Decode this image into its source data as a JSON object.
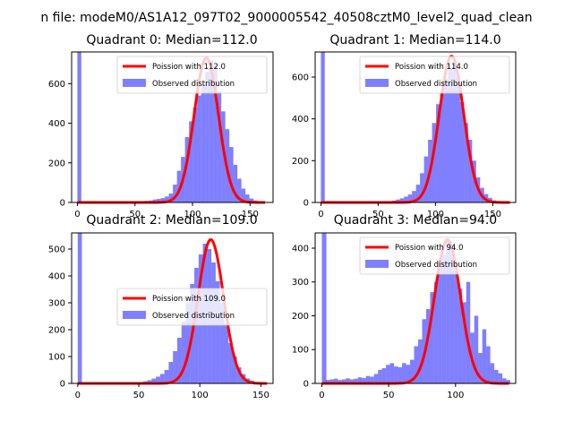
{
  "figure": {
    "suptitle": "n file: modeM0/AS1A12_097T02_9000005542_40508cztM0_level2_quad_clean"
  },
  "chart_data": [
    {
      "type": "bar",
      "title": "Quadrant 0: Median=112.0",
      "xlim": [
        -5,
        170
      ],
      "ylim": [
        0,
        760
      ],
      "xticks": [
        0,
        50,
        100,
        150
      ],
      "yticks": [
        0,
        200,
        400,
        600
      ],
      "legend": {
        "placement": "top-right",
        "line_label": "Poission with 112.0",
        "hist_label": "Observed distribution"
      },
      "poisson_mean": 112.0,
      "poisson_peak": 730,
      "poisson_range": [
        0,
        163
      ],
      "zero_bin": {
        "x": 0,
        "value": 760
      },
      "hist": {
        "bin_start": 55,
        "bin_width": 3.5,
        "values": [
          5,
          8,
          10,
          15,
          18,
          22,
          30,
          45,
          90,
          160,
          230,
          330,
          410,
          480,
          540,
          600,
          660,
          720,
          690,
          560,
          460,
          370,
          280,
          190,
          120,
          70,
          40,
          20,
          10,
          5
        ]
      }
    },
    {
      "type": "bar",
      "title": "Quadrant 1: Median=114.0",
      "xlim": [
        -5,
        170
      ],
      "ylim": [
        0,
        720
      ],
      "xticks": [
        0,
        50,
        100,
        150
      ],
      "yticks": [
        0,
        200,
        400,
        600
      ],
      "legend": {
        "placement": "top-right",
        "line_label": "Poission with 114.0",
        "hist_label": "Observed distribution"
      },
      "poisson_mean": 114.0,
      "poisson_peak": 700,
      "poisson_range": [
        0,
        165
      ],
      "zero_bin": {
        "x": 0,
        "value": 720
      },
      "hist": {
        "bin_start": 55,
        "bin_width": 3.5,
        "values": [
          4,
          6,
          9,
          14,
          20,
          28,
          38,
          55,
          85,
          140,
          220,
          300,
          380,
          470,
          520,
          590,
          640,
          660,
          600,
          480,
          380,
          300,
          200,
          120,
          70,
          40,
          22,
          10,
          5
        ]
      }
    },
    {
      "type": "bar",
      "title": "Quadrant 2: Median=109.0",
      "xlim": [
        -5,
        160
      ],
      "ylim": [
        0,
        560
      ],
      "xticks": [
        0,
        50,
        100,
        150
      ],
      "yticks": [
        0,
        100,
        200,
        300,
        400,
        500
      ],
      "legend": {
        "placement": "center-right",
        "line_label": "Poission with 109.0",
        "hist_label": "Observed distribution"
      },
      "poisson_mean": 109.0,
      "poisson_peak": 535,
      "poisson_range": [
        0,
        155
      ],
      "zero_bin": {
        "x": 0,
        "value": 560
      },
      "hist": {
        "bin_start": 50,
        "bin_width": 3.5,
        "values": [
          4,
          8,
          12,
          18,
          25,
          35,
          50,
          80,
          120,
          170,
          230,
          300,
          370,
          430,
          480,
          520,
          500,
          450,
          380,
          300,
          220,
          150,
          100,
          60,
          35,
          18,
          10,
          5,
          3,
          2
        ]
      }
    },
    {
      "type": "bar",
      "title": "Quadrant 3: Median=94.0",
      "xlim": [
        -5,
        145
      ],
      "ylim": [
        0,
        445
      ],
      "xticks": [
        0,
        50,
        100
      ],
      "yticks": [
        0,
        100,
        200,
        300,
        400
      ],
      "legend": {
        "placement": "top-right",
        "line_label": "Poission with 94.0",
        "hist_label": "Observed distribution"
      },
      "poisson_mean": 94.0,
      "poisson_peak": 425,
      "poisson_range": [
        0,
        140
      ],
      "zero_bin": {
        "x": 0,
        "value": 445
      },
      "hist": {
        "bin_start": 3,
        "bin_width": 3,
        "values": [
          10,
          12,
          14,
          10,
          12,
          15,
          12,
          14,
          18,
          16,
          22,
          20,
          28,
          40,
          45,
          55,
          60,
          50,
          48,
          60,
          55,
          70,
          110,
          130,
          190,
          220,
          270,
          300,
          360,
          380,
          420,
          410,
          330,
          280,
          240,
          300,
          150,
          200,
          90,
          160,
          110,
          60,
          40,
          30,
          15,
          10
        ]
      }
    }
  ]
}
